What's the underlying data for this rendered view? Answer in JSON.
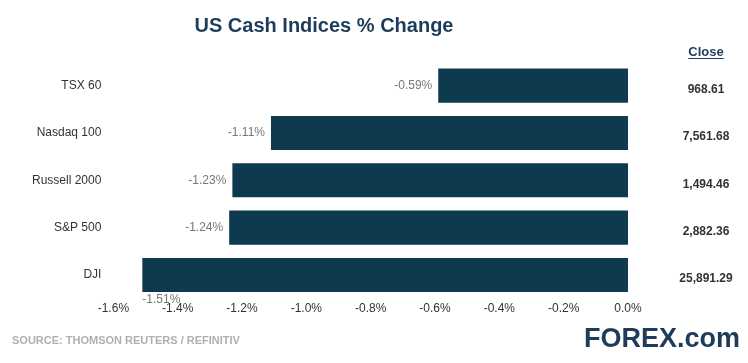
{
  "chart_data": {
    "type": "bar",
    "orientation": "horizontal",
    "title": "US Cash Indices % Change",
    "categories": [
      "TSX 60",
      "Nasdaq 100",
      "Russell 2000",
      "S&P 500",
      "DJI"
    ],
    "values": [
      -0.59,
      -1.11,
      -1.23,
      -1.24,
      -1.51
    ],
    "value_labels": [
      "-0.59%",
      "-1.11%",
      "-1.23%",
      "-1.24%",
      "-1.51%"
    ],
    "data_labels": true,
    "color": "#0d3a4e",
    "xlim": [
      -1.6,
      0
    ],
    "xticks": [
      {
        "value": -1.6,
        "label": "-1.6%"
      },
      {
        "value": -1.4,
        "label": "-1.4%"
      },
      {
        "value": -1.2,
        "label": "-1.2%"
      },
      {
        "value": -1.0,
        "label": "-1.0%"
      },
      {
        "value": -0.8,
        "label": "-0.8%"
      },
      {
        "value": -0.6,
        "label": "-0.6%"
      },
      {
        "value": -0.4,
        "label": "-0.4%"
      },
      {
        "value": -0.2,
        "label": "-0.2%"
      },
      {
        "value": 0,
        "label": "0.0%"
      }
    ],
    "grid": false,
    "close": {
      "title": "Close",
      "labels": [
        "968.61",
        "7,561.68",
        "1,494.46",
        "2,882.36",
        "25,891.29"
      ]
    },
    "source": "SOURCE: THOMSON REUTERS / REFINITIV",
    "logo": "FOREX.com"
  }
}
